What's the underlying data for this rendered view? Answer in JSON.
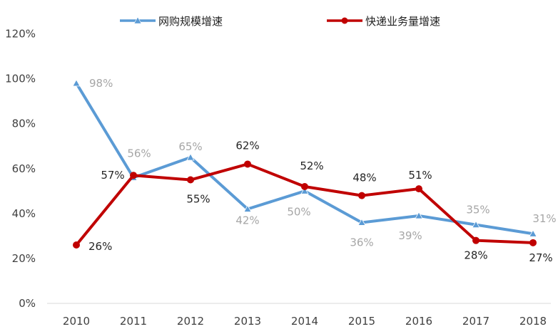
{
  "chart_data": {
    "type": "line",
    "categories": [
      "2010",
      "2011",
      "2012",
      "2013",
      "2014",
      "2015",
      "2016",
      "2017",
      "2018"
    ],
    "ylim": [
      0,
      120
    ],
    "yticks": [
      0,
      20,
      40,
      60,
      80,
      100,
      120
    ],
    "ytick_labels": [
      "0%",
      "20%",
      "40%",
      "60%",
      "80%",
      "100%",
      "120%"
    ],
    "grid": false,
    "legend_position": "top-center",
    "series": [
      {
        "name": "网购规模增速",
        "color": "#5B9BD5",
        "label_color": "#A6A6A6",
        "marker": "triangle",
        "values": [
          98,
          56,
          65,
          42,
          50,
          36,
          39,
          35,
          31
        ],
        "labels": [
          "98%",
          "56%",
          "65%",
          "42%",
          "50%",
          "36%",
          "39%",
          "35%",
          "31%"
        ]
      },
      {
        "name": "快递业务量增速",
        "color": "#C00000",
        "label_color": "#262626",
        "marker": "circle",
        "values": [
          26,
          57,
          55,
          62,
          52,
          48,
          51,
          28,
          27
        ],
        "labels": [
          "26%",
          "57%",
          "55%",
          "62%",
          "52%",
          "48%",
          "51%",
          "28%",
          "27%"
        ]
      }
    ]
  }
}
